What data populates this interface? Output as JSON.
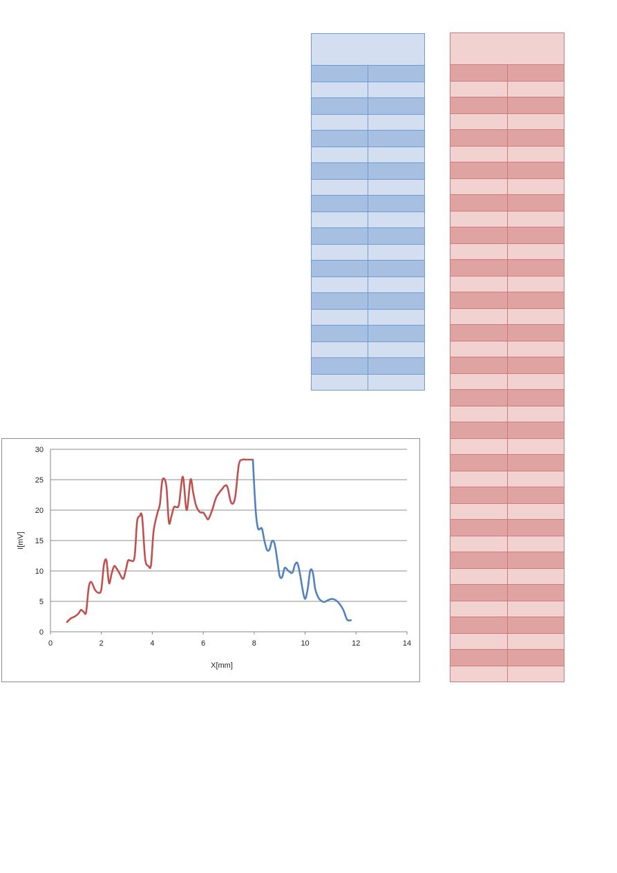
{
  "tables": {
    "blue": {
      "rows": 20,
      "cols": 2,
      "color_dark": "#a7bfe0",
      "color_light": "#d3dff0",
      "border": "#6f9bd1"
    },
    "red": {
      "rows": 38,
      "cols": 2,
      "color_dark": "#dfa3a2",
      "color_light": "#f2d1d1",
      "border": "#cf7a78"
    }
  },
  "chart_data": {
    "type": "line",
    "title": "",
    "xlabel": "X[mm]",
    "ylabel": "I[mV]",
    "xlim": [
      0,
      14
    ],
    "ylim": [
      0,
      30
    ],
    "x_ticks": [
      "0",
      "2",
      "4",
      "6",
      "8",
      "10",
      "12",
      "14"
    ],
    "y_ticks": [
      "0",
      "5",
      "10",
      "15",
      "20",
      "25",
      "30"
    ],
    "grid": "horizontal",
    "legend": "none",
    "series": [
      {
        "color": "#c0504d",
        "x": [
          0.65,
          0.8,
          0.95,
          1.1,
          1.2,
          1.3,
          1.4,
          1.5,
          1.6,
          1.75,
          1.9,
          2.0,
          2.1,
          2.2,
          2.3,
          2.4,
          2.5,
          2.6,
          2.7,
          2.85,
          2.95,
          3.05,
          3.15,
          3.3,
          3.4,
          3.5,
          3.6,
          3.72,
          3.85,
          3.95,
          4.05,
          4.2,
          4.3,
          4.4,
          4.55,
          4.65,
          4.75,
          4.85,
          4.95,
          5.05,
          5.2,
          5.35,
          5.5,
          5.6,
          5.7,
          5.8,
          5.9,
          6.0,
          6.1,
          6.2,
          6.35,
          6.5,
          6.65,
          6.75,
          6.85,
          6.95,
          7.1,
          7.25,
          7.4,
          7.55,
          7.65,
          7.75,
          7.85,
          7.95
        ],
        "y": [
          1.6,
          2.2,
          2.5,
          3.0,
          3.6,
          3.3,
          3.2,
          7.2,
          8.2,
          6.9,
          6.4,
          7.0,
          11.0,
          11.7,
          8.0,
          9.5,
          10.8,
          10.4,
          9.7,
          8.7,
          10.0,
          11.7,
          11.7,
          12.2,
          18.0,
          19.0,
          18.9,
          12.0,
          10.8,
          11.0,
          16.5,
          19.5,
          21.0,
          25.0,
          24.0,
          18.0,
          19.0,
          20.5,
          20.5,
          21.0,
          25.5,
          20.0,
          25.0,
          23.0,
          21.0,
          20.0,
          19.6,
          19.6,
          19.0,
          18.5,
          20.0,
          22.0,
          23.0,
          23.5,
          24.0,
          23.8,
          21.2,
          22.0,
          27.5,
          28.3,
          28.3,
          28.3,
          28.3,
          28.3
        ]
      },
      {
        "color": "#4f81bd",
        "x": [
          7.95,
          8.05,
          8.15,
          8.3,
          8.4,
          8.5,
          8.6,
          8.7,
          8.8,
          8.9,
          9.0,
          9.1,
          9.2,
          9.35,
          9.5,
          9.6,
          9.7,
          9.8,
          9.9,
          10.0,
          10.1,
          10.2,
          10.3,
          10.4,
          10.5,
          10.6,
          10.75,
          10.9,
          11.05,
          11.2,
          11.35,
          11.5,
          11.65,
          11.8
        ],
        "y": [
          28.3,
          20.5,
          17.0,
          17.0,
          15.0,
          13.5,
          13.5,
          14.9,
          14.5,
          12.0,
          9.2,
          9.0,
          10.5,
          10.0,
          9.7,
          11.0,
          11.3,
          9.5,
          7.0,
          5.4,
          7.0,
          10.0,
          9.8,
          7.0,
          5.8,
          5.2,
          4.9,
          5.2,
          5.4,
          5.2,
          4.6,
          3.6,
          2.0,
          1.9
        ]
      }
    ]
  }
}
